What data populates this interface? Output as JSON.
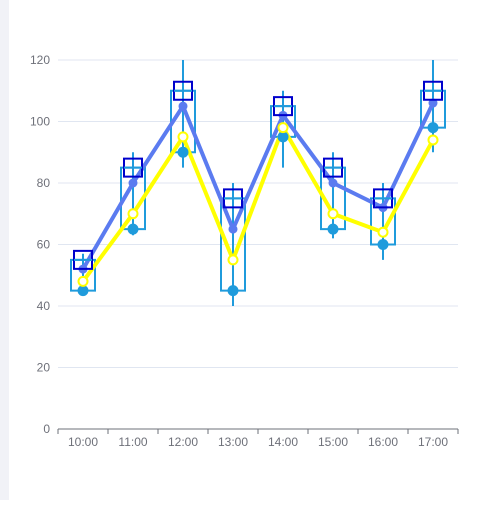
{
  "chart_data": {
    "type": "line",
    "x": [
      "10:00",
      "11:00",
      "12:00",
      "13:00",
      "14:00",
      "15:00",
      "16:00",
      "17:00"
    ],
    "ylim": [
      0,
      120
    ],
    "yticks": [
      "0",
      "20",
      "40",
      "60",
      "80",
      "100",
      "120"
    ],
    "grid": true,
    "colors": {
      "box": "#1f9bdc",
      "boxHigh": "#0000cc",
      "line": "#5b7bf0",
      "yellow": "#ffff00",
      "dot": "#1f9bdc"
    },
    "boxes": [
      {
        "low": 45,
        "q1": 45,
        "q3": 55,
        "high": 57
      },
      {
        "low": 63,
        "q1": 65,
        "q3": 85,
        "high": 90
      },
      {
        "low": 85,
        "q1": 90,
        "q3": 110,
        "high": 120
      },
      {
        "low": 40,
        "q1": 45,
        "q3": 75,
        "high": 80
      },
      {
        "low": 85,
        "q1": 95,
        "q3": 105,
        "high": 110
      },
      {
        "low": 62,
        "q1": 65,
        "q3": 85,
        "high": 90
      },
      {
        "low": 55,
        "q1": 60,
        "q3": 75,
        "high": 80
      },
      {
        "low": 90,
        "q1": 98,
        "q3": 110,
        "high": 120
      }
    ],
    "series": [
      {
        "values": [
          52,
          80,
          105,
          65,
          102,
          80,
          72,
          106
        ]
      },
      {
        "values": [
          48,
          70,
          95,
          55,
          98,
          70,
          64,
          94
        ]
      },
      {
        "values": [
          45,
          65,
          90,
          45,
          95,
          65,
          60,
          98
        ]
      },
      {
        "values": [
          55,
          85,
          110,
          75,
          105,
          85,
          75,
          110
        ]
      }
    ]
  }
}
